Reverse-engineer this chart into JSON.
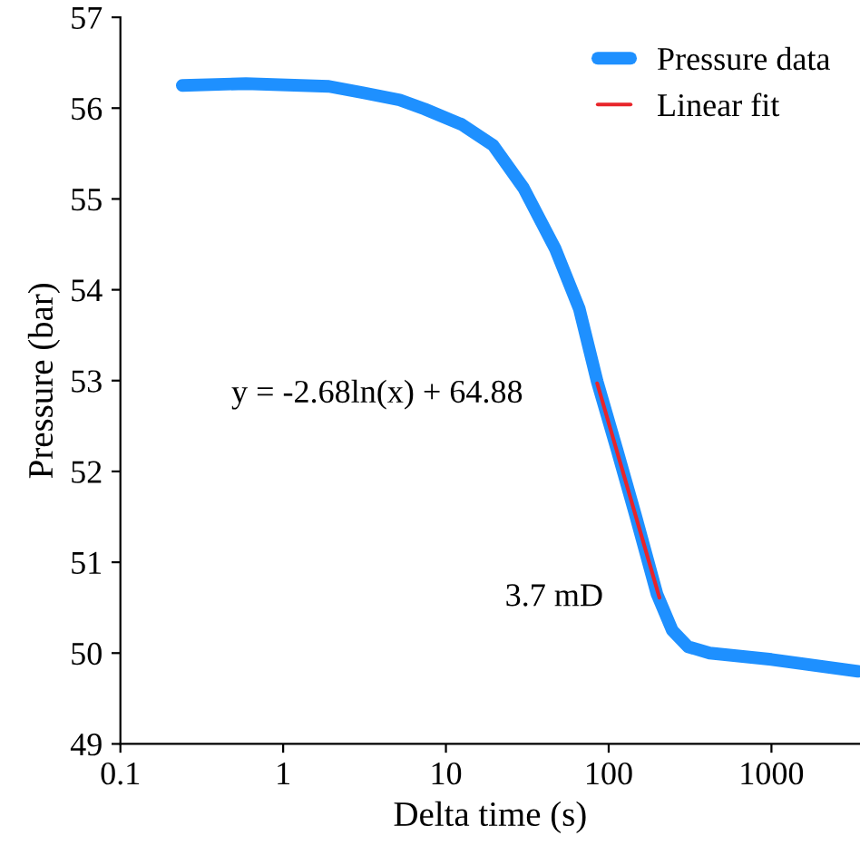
{
  "chart_data": {
    "type": "line",
    "xlabel": "Delta time (s)",
    "ylabel": "Pressure (bar)",
    "log": "x",
    "xlim": [
      0.1,
      3500
    ],
    "xticks": [
      0.1,
      1,
      10,
      100,
      1000
    ],
    "ylim": [
      49,
      57
    ],
    "yticks": [
      49,
      50,
      51,
      52,
      53,
      54,
      55,
      56,
      57
    ],
    "grid": false,
    "legend": "top right",
    "line_style": "solid",
    "marker": "none",
    "series": [
      {
        "name": "Pressure data",
        "color": "#1e90ff",
        "x": [
          0.24,
          0.59,
          1.91,
          3.09,
          5.2,
          7.4,
          12.5,
          19.5,
          30,
          47,
          66,
          85,
          112,
          146,
          198,
          246,
          307,
          417,
          1000,
          3400
        ],
        "values": [
          56.25,
          56.27,
          56.24,
          56.17,
          56.09,
          55.99,
          55.82,
          55.59,
          55.12,
          54.45,
          53.79,
          52.99,
          52.25,
          51.52,
          50.65,
          50.25,
          50.07,
          50.0,
          49.93,
          49.8
        ]
      },
      {
        "name": "Linear fit",
        "color": "#e8252a",
        "x": [
          85,
          205
        ],
        "values": [
          52.97,
          50.61
        ]
      }
    ],
    "annotations": [
      "y = -2.68ln(x) + 64.88",
      "3.7 mD"
    ]
  }
}
